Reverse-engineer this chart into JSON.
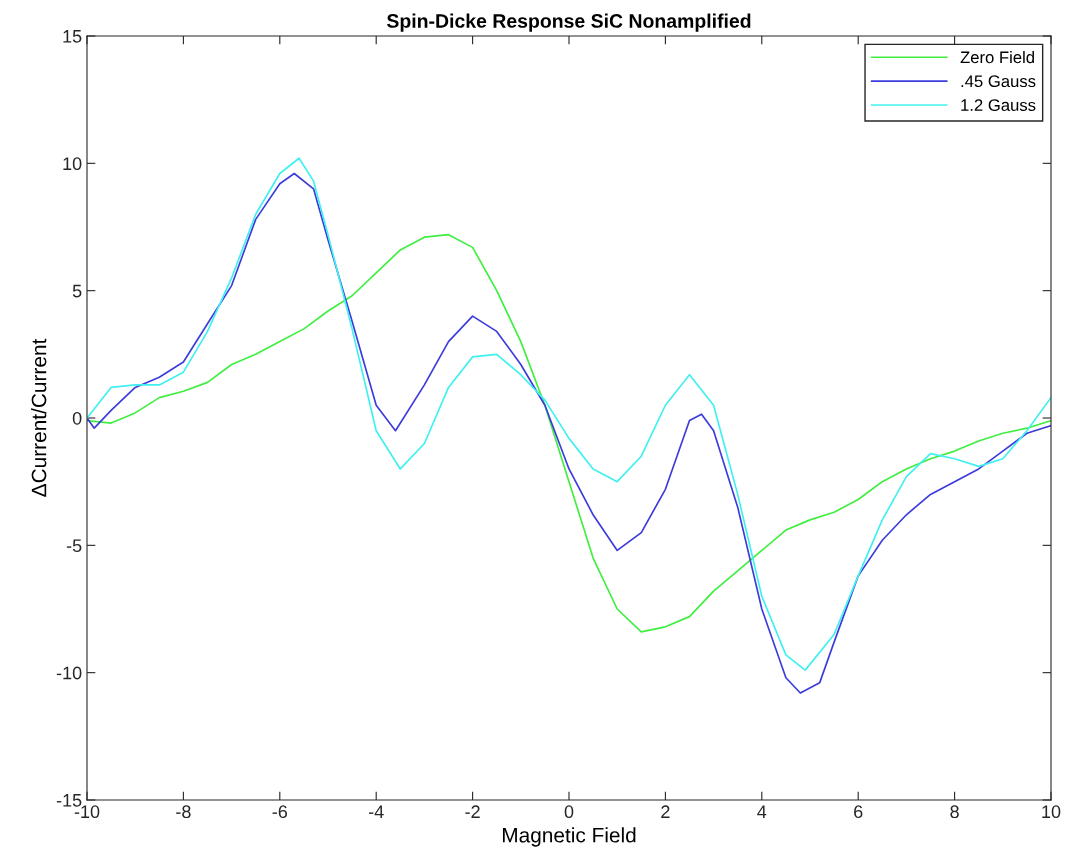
{
  "chart_data": {
    "type": "line",
    "title": "Spin-Dicke Response SiC Nonamplified",
    "xlabel": "Magnetic Field",
    "ylabel": "ΔCurrent/Current",
    "xlim": [
      -10,
      10
    ],
    "xticks": [
      -10,
      -8,
      -6,
      -4,
      -2,
      0,
      2,
      4,
      6,
      8,
      10
    ],
    "ylim": [
      -15,
      15
    ],
    "yticks": [
      -15,
      -10,
      -5,
      0,
      5,
      10,
      15
    ],
    "grid": false,
    "legend": "top right",
    "marker": "none",
    "line_style": "solid",
    "series": [
      {
        "name": "Zero Field",
        "color": "#40ee40",
        "x": [
          -10,
          -9.5,
          -9,
          -8.5,
          -8,
          -7.5,
          -7,
          -6.5,
          -6,
          -5.5,
          -5,
          -4.5,
          -4,
          -3.5,
          -3,
          -2.5,
          -2,
          -1.5,
          -1,
          -0.5,
          0,
          0.5,
          1,
          1.5,
          2,
          2.5,
          3,
          3.5,
          4,
          4.5,
          5,
          5.5,
          6,
          6.5,
          7,
          7.5,
          8,
          8.5,
          9,
          9.5,
          10
        ],
        "values": [
          -0.1,
          -0.2,
          0.2,
          0.8,
          1.05,
          1.4,
          2.1,
          2.5,
          3.0,
          3.5,
          4.2,
          4.8,
          5.7,
          6.6,
          7.1,
          7.2,
          6.7,
          5.0,
          3.0,
          0.5,
          -2.5,
          -5.5,
          -7.5,
          -8.4,
          -8.2,
          -7.8,
          -6.8,
          -6.0,
          -5.2,
          -4.4,
          -4.0,
          -3.7,
          -3.2,
          -2.5,
          -2.0,
          -1.6,
          -1.3,
          -0.9,
          -0.6,
          -0.4,
          -0.1
        ]
      },
      {
        "name": ".45 Gauss",
        "color": "#3c3cdc",
        "x": [
          -10,
          -9.85,
          -9.5,
          -9,
          -8.5,
          -8,
          -7.5,
          -7,
          -6.5,
          -6,
          -5.7,
          -5.3,
          -5,
          -4.5,
          -4,
          -3.6,
          -3,
          -2.5,
          -2,
          -1.5,
          -1,
          -0.5,
          0,
          0.5,
          1,
          1.5,
          2,
          2.5,
          2.75,
          3,
          3.5,
          4,
          4.5,
          4.8,
          5.2,
          5.5,
          6,
          6.5,
          7,
          7.5,
          8,
          8.5,
          9,
          9.5,
          10
        ],
        "values": [
          0,
          -0.4,
          0.3,
          1.2,
          1.6,
          2.2,
          3.7,
          5.2,
          7.8,
          9.2,
          9.6,
          9.0,
          7.0,
          3.8,
          0.5,
          -0.5,
          1.3,
          3.0,
          4.0,
          3.4,
          2.1,
          0.5,
          -2.0,
          -3.8,
          -5.2,
          -4.5,
          -2.8,
          -0.1,
          0.15,
          -0.5,
          -3.5,
          -7.5,
          -10.2,
          -10.8,
          -10.4,
          -8.8,
          -6.2,
          -4.8,
          -3.8,
          -3.0,
          -2.5,
          -2.0,
          -1.3,
          -0.6,
          -0.3
        ]
      },
      {
        "name": "1.2 Gauss",
        "color": "#40f0f0",
        "x": [
          -10,
          -9.5,
          -9,
          -8.5,
          -8,
          -7.5,
          -7,
          -6.5,
          -6,
          -5.6,
          -5.3,
          -5,
          -4.5,
          -4,
          -3.5,
          -3,
          -2.5,
          -2,
          -1.5,
          -1,
          -0.5,
          0,
          0.5,
          1,
          1.5,
          2,
          2.5,
          3,
          3.5,
          4,
          4.5,
          4.9,
          5.5,
          6,
          6.5,
          7,
          7.5,
          8,
          8.5,
          9,
          9.5,
          10
        ],
        "values": [
          0,
          1.2,
          1.3,
          1.3,
          1.8,
          3.4,
          5.5,
          8.0,
          9.6,
          10.2,
          9.3,
          7.2,
          3.5,
          -0.5,
          -2.0,
          -1.0,
          1.2,
          2.4,
          2.5,
          1.7,
          0.7,
          -0.8,
          -2.0,
          -2.5,
          -1.5,
          0.5,
          1.7,
          0.5,
          -3.0,
          -7.0,
          -9.3,
          -9.9,
          -8.5,
          -6.2,
          -4.0,
          -2.3,
          -1.4,
          -1.6,
          -1.9,
          -1.6,
          -0.5,
          0.8
        ]
      }
    ]
  }
}
